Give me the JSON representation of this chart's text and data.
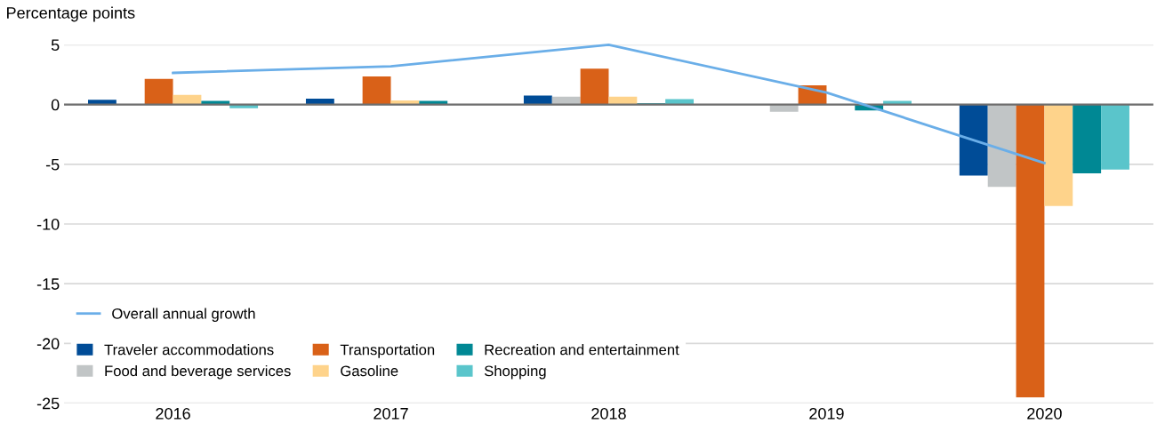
{
  "chart_data": {
    "type": "bar",
    "ylabel": "Percentage points",
    "categories": [
      "2016",
      "2017",
      "2018",
      "2019",
      "2020"
    ],
    "series": [
      {
        "name": "Traveler accommodations",
        "color": "#004c97",
        "values": [
          0.4,
          0.5,
          0.75,
          0.05,
          -5.95
        ]
      },
      {
        "name": "Food and beverage services",
        "color": "#c1c5c6",
        "values": [
          0.0,
          0.0,
          0.65,
          -0.6,
          -6.9
        ]
      },
      {
        "name": "Transportation",
        "color": "#d96118",
        "values": [
          2.15,
          2.35,
          3.0,
          1.6,
          -24.5
        ]
      },
      {
        "name": "Gasoline",
        "color": "#fed38b",
        "values": [
          0.8,
          0.35,
          0.65,
          0.0,
          -8.5
        ]
      },
      {
        "name": "Recreation and entertainment",
        "color": "#008894",
        "values": [
          0.3,
          0.3,
          0.1,
          -0.5,
          -5.75
        ]
      },
      {
        "name": "Shopping",
        "color": "#5ac5cb",
        "values": [
          -0.3,
          0.05,
          0.45,
          0.3,
          -5.45
        ]
      },
      {
        "name": "Overall annual growth",
        "type": "line",
        "color": "#6aaee8",
        "values": [
          2.65,
          3.2,
          5.0,
          1.0,
          -4.9
        ]
      }
    ],
    "ylim": [
      -25,
      5
    ],
    "yticks": [
      -25,
      -20,
      -15,
      -10,
      -5,
      0,
      5
    ],
    "grid": "y",
    "legend": "bottom left",
    "ref_lines": [
      {
        "axis": "y",
        "value": 0,
        "color": "#6e6e6e"
      }
    ]
  }
}
